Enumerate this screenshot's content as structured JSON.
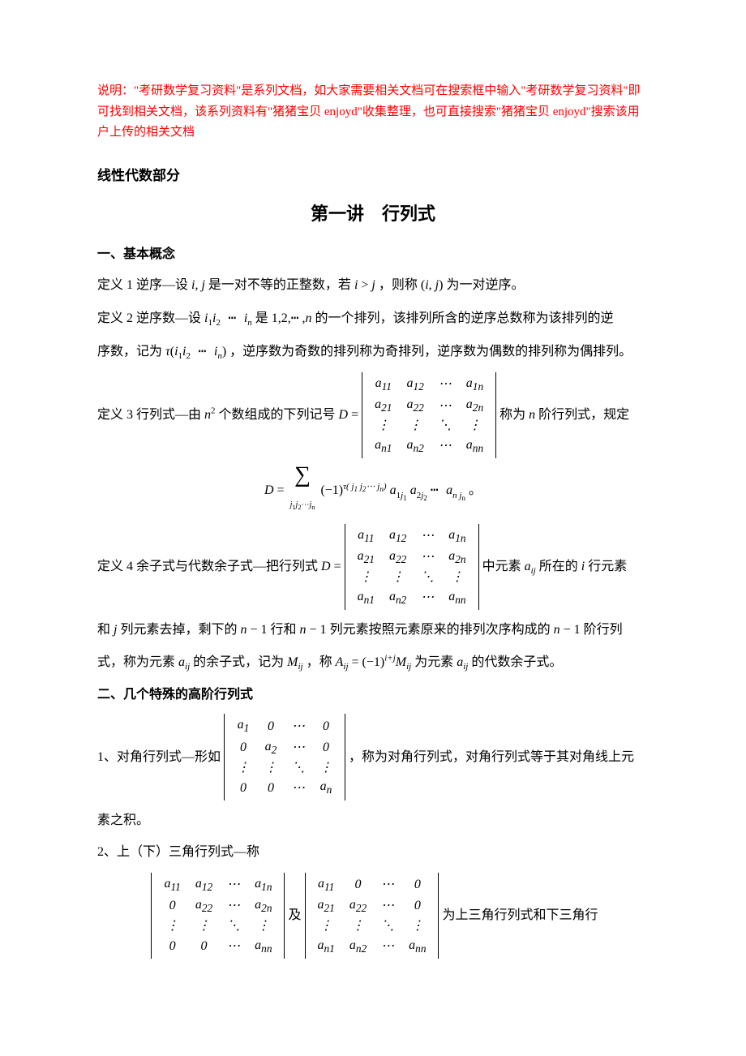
{
  "note": "说明：\"考研数学复习资料\"是系列文档，如大家需要相关文档可在搜索框中输入\"考研数学复习资料\"即可找到相关文档，该系列资料有\"猪猪宝贝 enjoyd\"收集整理，也可直接搜索\"猪猪宝贝 enjoyd\"搜索该用户上传的相关文档",
  "sectionHeading": "线性代数部分",
  "mainTitle": "第一讲　行列式",
  "h1": "一、基本概念",
  "def1_a": "定义 1  逆序—设 ",
  "def1_b": " 是一对不等的正整数，若 ",
  "def1_c": " ，则称 ",
  "def1_d": " 为一对逆序。",
  "def2_a": "定义 2  逆序数—设 ",
  "def2_b": " 是 ",
  "def2_c": " 的一个排列，该排列所含的逆序总数称为该排列的逆",
  "def2_d": "序数，记为 ",
  "def2_e": " ，逆序数为奇数的排列称为奇排列，逆序数为偶数的排列称为偶排列。",
  "def3_a": "定义 3  行列式—由 ",
  "def3_b": " 个数组成的下列记号 ",
  "def3_c": " 称为 ",
  "def3_d": " 阶行列式，规定",
  "def4_a": "定义 4  余子式与代数余子式—把行列式 ",
  "def4_b": " 中元素 ",
  "def4_c": " 所在的 ",
  "def4_d": " 行元素",
  "def4_e": "和 ",
  "def4_f": " 列元素去掉，剩下的 ",
  "def4_g": " 行和 ",
  "def4_h": " 列元素按照元素原来的排列次序构成的 ",
  "def4_i": " 阶行列",
  "def4_j": "式，称为元素 ",
  "def4_k": " 的余子式，记为 ",
  "def4_l": " ，称 ",
  "def4_m": " 为元素 ",
  "def4_n": " 的代数余子式。",
  "h2": "二、几个特殊的高阶行列式",
  "sp1_a": "1、对角行列式—形如",
  "sp1_b": " ，称为对角行列式，对角行列式等于其对角线上元",
  "sp1_c": "素之积。",
  "sp2_a": "2、上（下）三角行列式—称",
  "sp2_b": " 及 ",
  "sp2_c": " 为上三角行列式和下三角行",
  "det_general": [
    [
      "a<sub>11</sub>",
      "a<sub>12</sub>",
      "⋯",
      "a<sub>1n</sub>"
    ],
    [
      "a<sub>21</sub>",
      "a<sub>22</sub>",
      "⋯",
      "a<sub>2n</sub>"
    ],
    [
      "⋮",
      "⋮",
      "⋱",
      "⋮"
    ],
    [
      "a<sub>n1</sub>",
      "a<sub>n2</sub>",
      "⋯",
      "a<sub>nn</sub>"
    ]
  ],
  "det_diag": [
    [
      "a<sub>1</sub>",
      "0",
      "⋯",
      "0"
    ],
    [
      "0",
      "a<sub>2</sub>",
      "⋯",
      "0"
    ],
    [
      "⋮",
      "⋮",
      "⋱",
      "⋮"
    ],
    [
      "0",
      "0",
      "⋯",
      "a<sub>n</sub>"
    ]
  ],
  "det_upper": [
    [
      "a<sub>11</sub>",
      "a<sub>12</sub>",
      "⋯",
      "a<sub>1n</sub>"
    ],
    [
      "0",
      "a<sub>22</sub>",
      "⋯",
      "a<sub>2n</sub>"
    ],
    [
      "⋮",
      "⋮",
      "⋱",
      "⋮"
    ],
    [
      "0",
      "0",
      "⋯",
      "a<sub>nn</sub>"
    ]
  ],
  "det_lower": [
    [
      "a<sub>11</sub>",
      "0",
      "⋯",
      "0"
    ],
    [
      "a<sub>21</sub>",
      "a<sub>22</sub>",
      "⋯",
      "0"
    ],
    [
      "⋮",
      "⋮",
      "⋱",
      "⋮"
    ],
    [
      "a<sub>n1</sub>",
      "a<sub>n2</sub>",
      "⋯",
      "a<sub>nn</sub>"
    ]
  ],
  "colors": {
    "note": "#ff0000",
    "text": "#000000",
    "bg": "#ffffff"
  },
  "fonts": {
    "body": "SimSun",
    "math": "Times New Roman",
    "body_size": 16,
    "title_size": 22
  }
}
